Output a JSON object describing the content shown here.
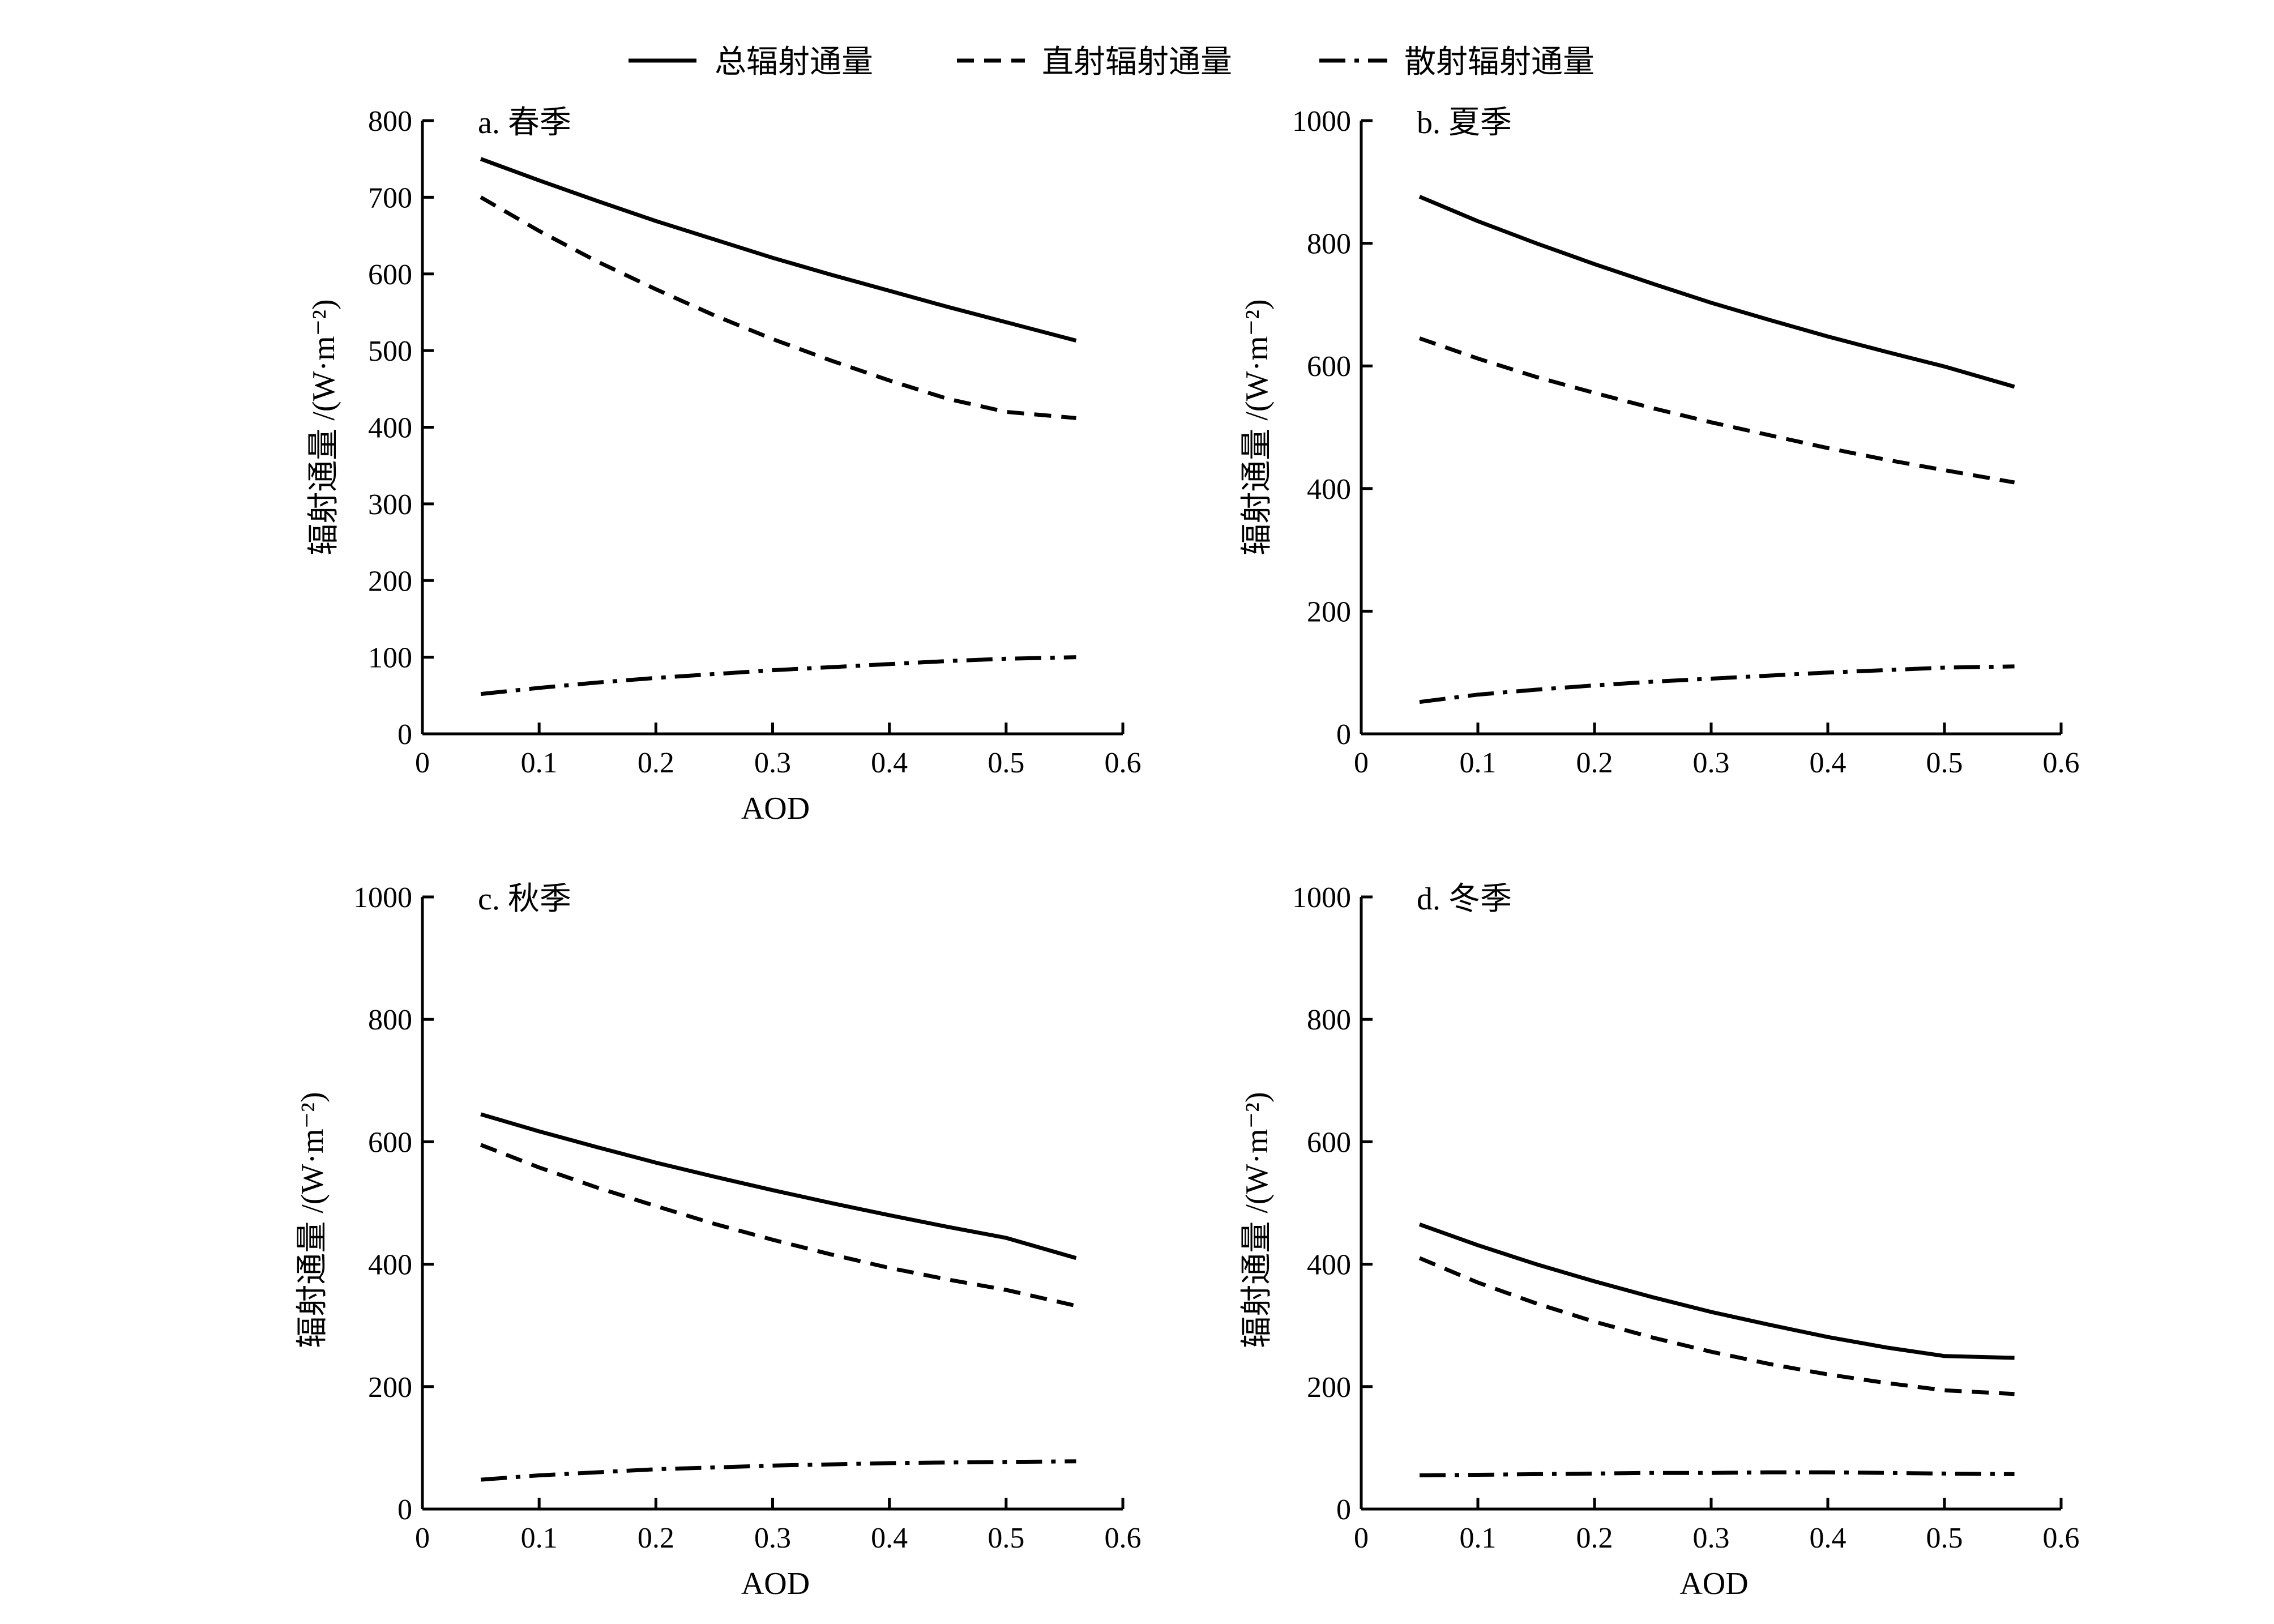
{
  "legend": {
    "placement": "top-center",
    "items": [
      {
        "label": "总辐射通量",
        "style": "solid"
      },
      {
        "label": "直射辐射通量",
        "style": "dashed"
      },
      {
        "label": "散射辐射通量",
        "style": "dashdot"
      }
    ]
  },
  "chart_data": [
    {
      "type": "line",
      "title": "a. 春季",
      "xlabel": "AOD",
      "ylabel": "辐射通量 /(W·m⁻²)",
      "xlim": [
        0,
        0.6
      ],
      "ylim": [
        0,
        800
      ],
      "xticks": [
        "0",
        "0.1",
        "0.2",
        "0.3",
        "0.4",
        "0.5",
        "0.6"
      ],
      "yticks": [
        "0",
        "100",
        "200",
        "300",
        "400",
        "500",
        "600",
        "700",
        "800"
      ],
      "x": [
        0.05,
        0.1,
        0.15,
        0.2,
        0.25,
        0.3,
        0.35,
        0.4,
        0.45,
        0.5,
        0.56
      ],
      "series": [
        {
          "name": "总辐射通量",
          "style": "solid",
          "values": [
            750,
            722,
            695,
            669,
            645,
            621,
            599,
            578,
            557,
            537,
            513
          ]
        },
        {
          "name": "直射辐射通量",
          "style": "dashed",
          "values": [
            700,
            656,
            616,
            580,
            546,
            515,
            487,
            461,
            437,
            420,
            412
          ]
        },
        {
          "name": "散射辐射通量",
          "style": "dashdot",
          "values": [
            52,
            60,
            67,
            73,
            78,
            83,
            87,
            91,
            95,
            98,
            100
          ]
        }
      ]
    },
    {
      "type": "line",
      "title": "b. 夏季",
      "xlabel": "",
      "ylabel": "辐射通量 /(W·m⁻²)",
      "xlim": [
        0,
        0.6
      ],
      "ylim": [
        0,
        1000
      ],
      "xticks": [
        "0",
        "0.1",
        "0.2",
        "0.3",
        "0.4",
        "0.5",
        "0.6"
      ],
      "yticks": [
        "0",
        "200",
        "400",
        "600",
        "800",
        "1000"
      ],
      "x": [
        0.05,
        0.1,
        0.15,
        0.2,
        0.25,
        0.3,
        0.35,
        0.4,
        0.45,
        0.5,
        0.56
      ],
      "series": [
        {
          "name": "总辐射通量",
          "style": "solid",
          "values": [
            876,
            836,
            800,
            766,
            734,
            703,
            675,
            648,
            623,
            599,
            566
          ]
        },
        {
          "name": "直射辐射通量",
          "style": "dashed",
          "values": [
            645,
            612,
            582,
            556,
            531,
            508,
            487,
            466,
            447,
            430,
            410
          ]
        },
        {
          "name": "散射辐射通量",
          "style": "dashdot",
          "values": [
            52,
            64,
            72,
            79,
            85,
            90,
            95,
            100,
            104,
            108,
            110
          ]
        }
      ]
    },
    {
      "type": "line",
      "title": "c. 秋季",
      "xlabel": "AOD",
      "ylabel": "辐射通量 /(W·m⁻²)",
      "xlim": [
        0,
        0.6
      ],
      "ylim": [
        0,
        1000
      ],
      "xticks": [
        "0",
        "0.1",
        "0.2",
        "0.3",
        "0.4",
        "0.5",
        "0.6"
      ],
      "yticks": [
        "0",
        "200",
        "400",
        "600",
        "800",
        "1000"
      ],
      "x": [
        0.05,
        0.1,
        0.15,
        0.2,
        0.25,
        0.3,
        0.35,
        0.4,
        0.45,
        0.5,
        0.56
      ],
      "series": [
        {
          "name": "总辐射通量",
          "style": "solid",
          "values": [
            645,
            617,
            591,
            566,
            543,
            521,
            500,
            480,
            461,
            443,
            410
          ]
        },
        {
          "name": "直射辐射通量",
          "style": "dashed",
          "values": [
            595,
            558,
            525,
            495,
            466,
            440,
            416,
            394,
            375,
            358,
            332
          ]
        },
        {
          "name": "散射辐射通量",
          "style": "dashdot",
          "values": [
            48,
            55,
            60,
            65,
            68,
            71,
            73,
            75,
            76,
            77,
            78
          ]
        }
      ]
    },
    {
      "type": "line",
      "title": "d. 冬季",
      "xlabel": "AOD",
      "ylabel": "辐射通量 /(W·m⁻²)",
      "xlim": [
        0,
        0.6
      ],
      "ylim": [
        0,
        1000
      ],
      "xticks": [
        "0",
        "0.1",
        "0.2",
        "0.3",
        "0.4",
        "0.5",
        "0.6"
      ],
      "yticks": [
        "0",
        "200",
        "400",
        "600",
        "800",
        "1000"
      ],
      "x": [
        0.05,
        0.1,
        0.15,
        0.2,
        0.25,
        0.3,
        0.35,
        0.4,
        0.45,
        0.5,
        0.56
      ],
      "series": [
        {
          "name": "总辐射通量",
          "style": "solid",
          "values": [
            465,
            431,
            400,
            372,
            346,
            322,
            301,
            281,
            264,
            250,
            247
          ]
        },
        {
          "name": "直射辐射通量",
          "style": "dashed",
          "values": [
            410,
            370,
            336,
            306,
            280,
            257,
            237,
            220,
            206,
            194,
            188
          ]
        },
        {
          "name": "散射辐射通量",
          "style": "dashdot",
          "values": [
            55,
            56,
            57,
            58,
            59,
            59,
            60,
            60,
            59,
            58,
            57
          ]
        }
      ]
    }
  ]
}
